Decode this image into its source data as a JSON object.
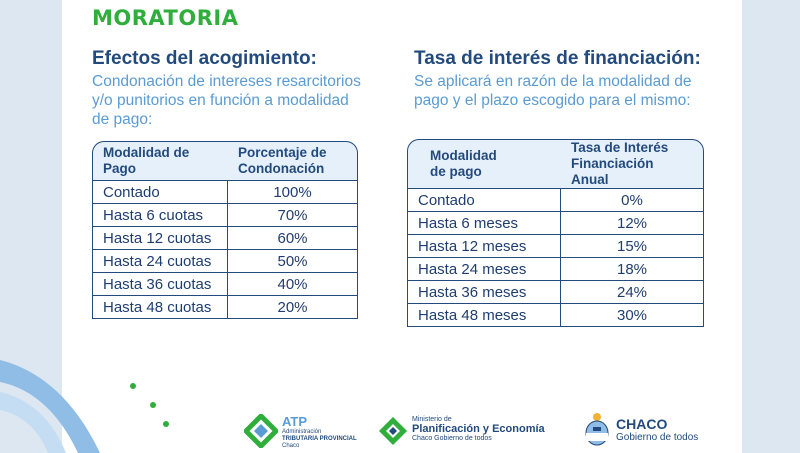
{
  "title": "MORATORIA",
  "left": {
    "heading": "Efectos del acogimiento:",
    "description": [
      "Condonación de intereses resarcitorios",
      "y/o punitorios en función a modalidad",
      "de pago:"
    ],
    "headers": [
      [
        "Modalidad de",
        "Pago"
      ],
      [
        "Porcentaje de",
        "Condonación"
      ]
    ],
    "rows": [
      {
        "label": "Contado",
        "value": "100%"
      },
      {
        "label": "Hasta 6 cuotas",
        "value": "70%"
      },
      {
        "label": "Hasta 12 cuotas",
        "value": "60%"
      },
      {
        "label": "Hasta 24 cuotas",
        "value": "50%"
      },
      {
        "label": "Hasta 36 cuotas",
        "value": "40%"
      },
      {
        "label": "Hasta 48 cuotas",
        "value": "20%"
      }
    ]
  },
  "right": {
    "heading": "Tasa de interés de financiación:",
    "description": [
      "Se aplicará en razón de la modalidad de",
      "pago y el plazo escogido para el mismo:"
    ],
    "headers": [
      [
        "Modalidad",
        "de pago"
      ],
      [
        "Tasa de Interés",
        "Financiación Anual"
      ]
    ],
    "rows": [
      {
        "label": "Contado",
        "value": "0%"
      },
      {
        "label": "Hasta 6 meses",
        "value": "12%"
      },
      {
        "label": "Hasta 12 meses",
        "value": "15%"
      },
      {
        "label": "Hasta 24 meses",
        "value": "18%"
      },
      {
        "label": "Hasta 36 meses",
        "value": "24%"
      },
      {
        "label": "Hasta 48 meses",
        "value": "30%"
      }
    ]
  },
  "logos": {
    "atp": {
      "name": "ATP",
      "line1": "Administración",
      "line2": "TRIBUTARIA PROVINCIAL",
      "line3": "Chaco"
    },
    "plan": {
      "pre": "Ministerio de",
      "name": "Planificación y Economía",
      "sub": "Chaco Gobierno de todos"
    },
    "chaco": {
      "name": "CHACO",
      "sub": "Gobierno de todos"
    }
  },
  "colors": {
    "green": "#2fae3c",
    "navy": "#234a7d",
    "light_blue": "#5b9bd2"
  }
}
